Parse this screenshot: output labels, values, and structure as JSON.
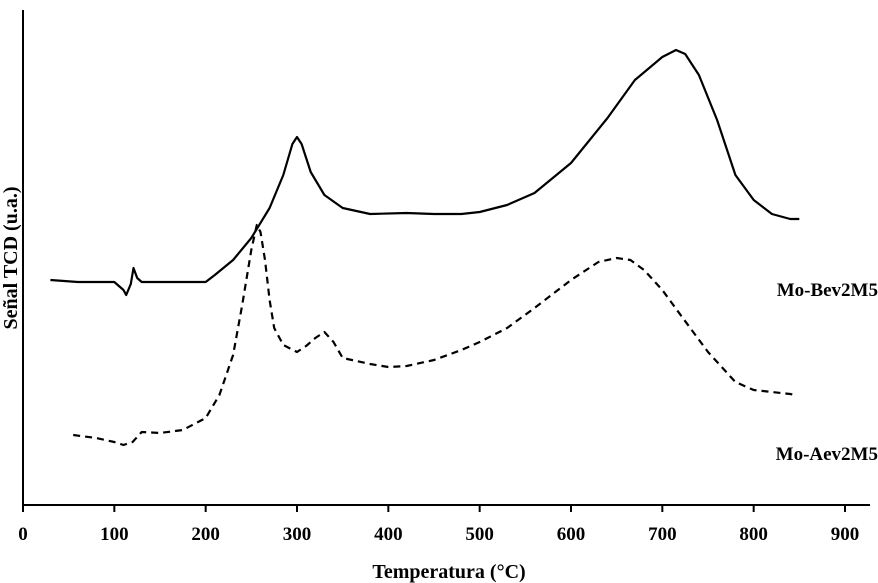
{
  "chart_data": {
    "type": "line",
    "xlabel": "Temperatura (°C)",
    "ylabel": "Señal TCD (u.a.)",
    "xlim": [
      0,
      900
    ],
    "x_ticks": [
      "0",
      "100",
      "200",
      "300",
      "400",
      "500",
      "600",
      "700",
      "800",
      "900"
    ],
    "y_ticks_shown": false,
    "grid": false,
    "series": [
      {
        "name": "Mo-Bev2M5",
        "style": "solid",
        "color": "#000000",
        "x": [
          30,
          60,
          100,
          110,
          113,
          118,
          121,
          125,
          130,
          150,
          200,
          210,
          230,
          250,
          270,
          285,
          295,
          300,
          305,
          315,
          330,
          350,
          380,
          420,
          450,
          480,
          500,
          530,
          560,
          600,
          640,
          670,
          700,
          715,
          725,
          740,
          760,
          780,
          800,
          820,
          840,
          850
        ],
        "y": [
          2.0,
          1.98,
          1.98,
          1.9,
          1.85,
          1.96,
          2.12,
          2.02,
          1.98,
          1.98,
          1.98,
          2.05,
          2.2,
          2.42,
          2.72,
          3.05,
          3.36,
          3.43,
          3.36,
          3.08,
          2.85,
          2.72,
          2.66,
          2.67,
          2.66,
          2.66,
          2.68,
          2.75,
          2.87,
          3.17,
          3.62,
          4.0,
          4.23,
          4.3,
          4.26,
          4.05,
          3.6,
          3.05,
          2.8,
          2.66,
          2.61,
          2.61
        ]
      },
      {
        "name": "Mo-Aev2M5",
        "style": "dashed",
        "color": "#000000",
        "x": [
          55,
          80,
          100,
          110,
          120,
          130,
          150,
          175,
          200,
          215,
          230,
          240,
          250,
          256,
          260,
          265,
          270,
          275,
          285,
          300,
          310,
          320,
          330,
          340,
          350,
          380,
          400,
          420,
          450,
          480,
          500,
          530,
          560,
          600,
          630,
          650,
          665,
          680,
          700,
          720,
          750,
          780,
          800,
          840,
          845
        ],
        "y": [
          0.45,
          0.42,
          0.38,
          0.35,
          0.38,
          0.48,
          0.47,
          0.5,
          0.62,
          0.85,
          1.25,
          1.75,
          2.3,
          2.55,
          2.48,
          2.2,
          1.8,
          1.52,
          1.35,
          1.28,
          1.34,
          1.42,
          1.48,
          1.38,
          1.22,
          1.16,
          1.13,
          1.14,
          1.2,
          1.3,
          1.38,
          1.52,
          1.72,
          2.0,
          2.18,
          2.22,
          2.2,
          2.1,
          1.9,
          1.65,
          1.28,
          0.98,
          0.9,
          0.86,
          0.85
        ]
      }
    ]
  }
}
